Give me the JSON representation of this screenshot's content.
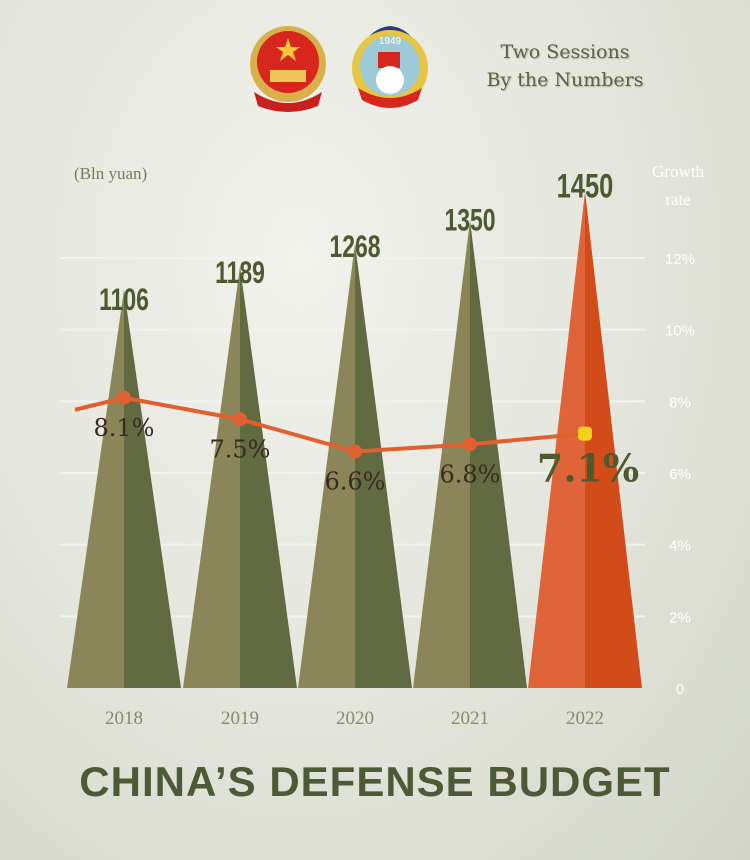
{
  "header": {
    "title_line1": "Two Sessions",
    "title_line2": "By the Numbers",
    "emblem_text": "1949"
  },
  "footer": {
    "title": "CHINA’S DEFENSE BUDGET"
  },
  "chart_data": {
    "type": "bar",
    "title": "CHINA’S DEFENSE BUDGET",
    "categories": [
      "2018",
      "2019",
      "2020",
      "2021",
      "2022"
    ],
    "series": [
      {
        "name": "Budget",
        "unit_label": "(Bln yuan)",
        "values": [
          1106,
          1189,
          1268,
          1350,
          1450
        ]
      },
      {
        "name": "Growth rate",
        "values": [
          8.1,
          7.5,
          6.6,
          6.8,
          7.1
        ],
        "labels": [
          "8.1%",
          "7.5%",
          "6.6%",
          "6.8%",
          "7.1%"
        ]
      }
    ],
    "y2label_line1": "Growth",
    "y2label_line2": "rate",
    "y2ticks": [
      "0",
      "2%",
      "4%",
      "6%",
      "8%",
      "10%",
      "12%"
    ],
    "y2lim": [
      0,
      12
    ],
    "colors": {
      "bar_light": "#8a8659",
      "bar_dark": "#616a40",
      "highlight_light": "#e0643a",
      "highlight_dark": "#d24c1a",
      "line": "#e06030",
      "highlight_point": "#f3d21a",
      "value_text": "#4d5a30"
    }
  }
}
